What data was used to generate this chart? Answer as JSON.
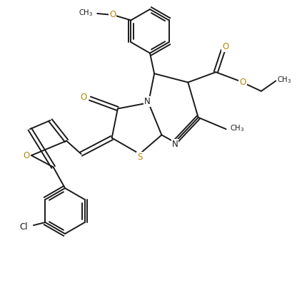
{
  "bg_color": "#ffffff",
  "bond_color": "#1a1a1a",
  "atom_colors": {
    "N": "#1a1a1a",
    "O": "#b8860b",
    "S": "#b8860b",
    "Cl": "#1a1a1a"
  },
  "figsize": [
    4.16,
    4.28
  ],
  "dpi": 100,
  "xlim": [
    0,
    10
  ],
  "ylim": [
    0,
    10.3
  ]
}
